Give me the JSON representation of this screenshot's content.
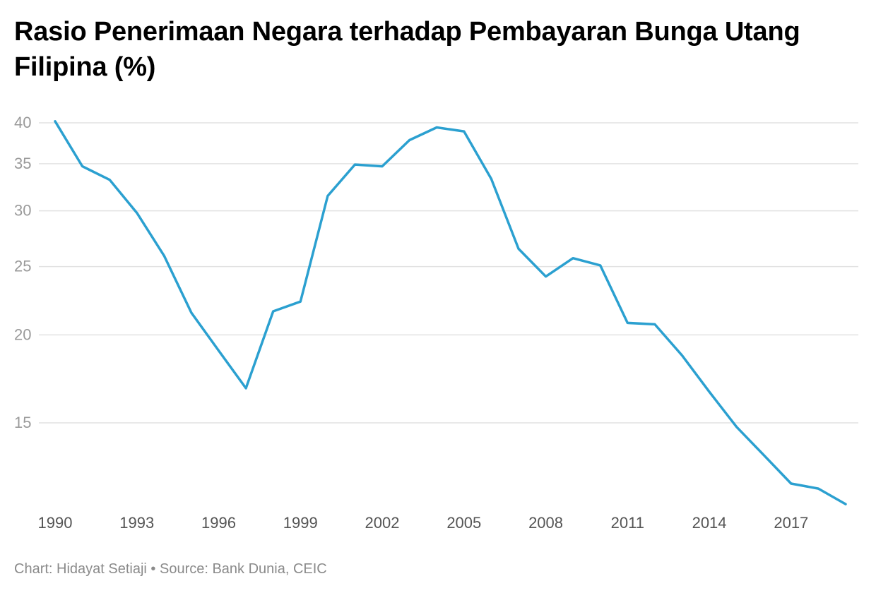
{
  "chart_data": {
    "type": "line",
    "title": "Rasio Penerimaan Negara terhadap Pembayaran Bunga Utang Filipina (%)",
    "xlabel": "",
    "ylabel": "",
    "y_scale": "log",
    "ylim": [
      12.3,
      41
    ],
    "xlim": [
      1990,
      2019
    ],
    "grid": true,
    "legend": "none",
    "y_ticks": [
      15,
      20,
      25,
      30,
      35,
      40
    ],
    "x_ticks": [
      "1990",
      "1993",
      "1996",
      "1999",
      "2002",
      "2005",
      "2008",
      "2011",
      "2014",
      "2017"
    ],
    "series": [
      {
        "name": "",
        "color": "#2ba0d0",
        "x": [
          1990,
          1991,
          1992,
          1993,
          1994,
          1995,
          1996,
          1997,
          1998,
          1999,
          2000,
          2001,
          2002,
          2003,
          2004,
          2005,
          2006,
          2007,
          2008,
          2009,
          2010,
          2011,
          2012,
          2013,
          2014,
          2015,
          2016,
          2017,
          2018,
          2019
        ],
        "values": [
          40.2,
          34.7,
          33.2,
          29.8,
          25.9,
          21.5,
          19.0,
          16.8,
          21.6,
          22.3,
          31.5,
          34.9,
          34.7,
          37.8,
          39.4,
          38.9,
          33.3,
          26.5,
          24.2,
          25.7,
          25.1,
          20.8,
          20.7,
          18.7,
          16.6,
          14.8,
          13.5,
          12.3,
          12.1,
          11.5
        ]
      }
    ]
  },
  "footer": {
    "credit": "Chart: Hidayat Setiaji • Source: Bank Dunia, CEIC"
  },
  "colors": {
    "line": "#2ba0d0",
    "grid": "#e2e2e2"
  }
}
